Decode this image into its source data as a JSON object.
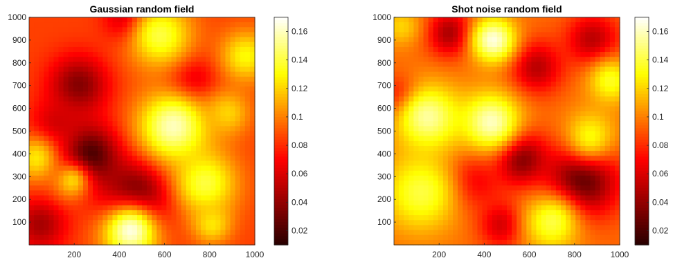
{
  "chart_data": [
    {
      "type": "heatmap",
      "title": "Gaussian random field",
      "xlabel": "",
      "ylabel": "",
      "xlim": [
        0,
        1000
      ],
      "ylim": [
        0,
        1000
      ],
      "xticks": [
        "200",
        "400",
        "600",
        "800",
        "1000"
      ],
      "yticks": [
        "100",
        "200",
        "300",
        "400",
        "500",
        "600",
        "700",
        "800",
        "900",
        "1000"
      ],
      "colormap": "hot",
      "clim": [
        0.01,
        0.17
      ],
      "colorbar_ticks": [
        "0.02",
        "0.04",
        "0.06",
        "0.08",
        "0.1",
        "0.12",
        "0.14",
        "0.16"
      ],
      "base_value": 0.085,
      "features": [
        {
          "x": 260,
          "y": 390,
          "r": 95,
          "value": 0.012
        },
        {
          "x": 480,
          "y": 210,
          "r": 110,
          "value": 0.018
        },
        {
          "x": 220,
          "y": 700,
          "r": 90,
          "value": 0.035
        },
        {
          "x": 440,
          "y": 990,
          "r": 70,
          "value": 0.045
        },
        {
          "x": 50,
          "y": 90,
          "r": 80,
          "value": 0.045
        },
        {
          "x": 720,
          "y": 710,
          "r": 80,
          "value": 0.05
        },
        {
          "x": 120,
          "y": 520,
          "r": 80,
          "value": 0.055
        },
        {
          "x": 640,
          "y": 520,
          "r": 110,
          "value": 0.16
        },
        {
          "x": 580,
          "y": 920,
          "r": 100,
          "value": 0.14
        },
        {
          "x": 780,
          "y": 270,
          "r": 100,
          "value": 0.14
        },
        {
          "x": 450,
          "y": 60,
          "r": 90,
          "value": 0.165
        },
        {
          "x": 30,
          "y": 380,
          "r": 70,
          "value": 0.125
        },
        {
          "x": 960,
          "y": 830,
          "r": 80,
          "value": 0.13
        },
        {
          "x": 810,
          "y": 90,
          "r": 60,
          "value": 0.125
        },
        {
          "x": 880,
          "y": 580,
          "r": 70,
          "value": 0.12
        },
        {
          "x": 190,
          "y": 280,
          "r": 60,
          "value": 0.12
        }
      ]
    },
    {
      "type": "heatmap",
      "title": "Shot noise random field",
      "xlabel": "",
      "ylabel": "",
      "xlim": [
        0,
        1000
      ],
      "ylim": [
        0,
        1000
      ],
      "xticks": [
        "200",
        "400",
        "600",
        "800",
        "1000"
      ],
      "yticks": [
        "100",
        "200",
        "300",
        "400",
        "500",
        "600",
        "700",
        "800",
        "900",
        "1000"
      ],
      "colormap": "hot",
      "clim": [
        0.01,
        0.17
      ],
      "colorbar_ticks": [
        "0.02",
        "0.04",
        "0.06",
        "0.08",
        "0.1",
        "0.12",
        "0.14",
        "0.16"
      ],
      "base_value": 0.095,
      "features": [
        {
          "x": 830,
          "y": 280,
          "r": 110,
          "value": 0.02
        },
        {
          "x": 560,
          "y": 380,
          "r": 80,
          "value": 0.03
        },
        {
          "x": 250,
          "y": 930,
          "r": 70,
          "value": 0.045
        },
        {
          "x": 630,
          "y": 780,
          "r": 80,
          "value": 0.05
        },
        {
          "x": 880,
          "y": 900,
          "r": 80,
          "value": 0.05
        },
        {
          "x": 340,
          "y": 280,
          "r": 90,
          "value": 0.06
        },
        {
          "x": 480,
          "y": 90,
          "r": 70,
          "value": 0.055
        },
        {
          "x": 30,
          "y": 650,
          "r": 60,
          "value": 0.06
        },
        {
          "x": 150,
          "y": 560,
          "r": 100,
          "value": 0.155
        },
        {
          "x": 430,
          "y": 540,
          "r": 90,
          "value": 0.16
        },
        {
          "x": 440,
          "y": 900,
          "r": 70,
          "value": 0.165
        },
        {
          "x": 120,
          "y": 230,
          "r": 120,
          "value": 0.14
        },
        {
          "x": 960,
          "y": 720,
          "r": 70,
          "value": 0.135
        },
        {
          "x": 870,
          "y": 480,
          "r": 80,
          "value": 0.13
        },
        {
          "x": 700,
          "y": 100,
          "r": 90,
          "value": 0.14
        },
        {
          "x": 30,
          "y": 960,
          "r": 60,
          "value": 0.12
        }
      ]
    }
  ]
}
